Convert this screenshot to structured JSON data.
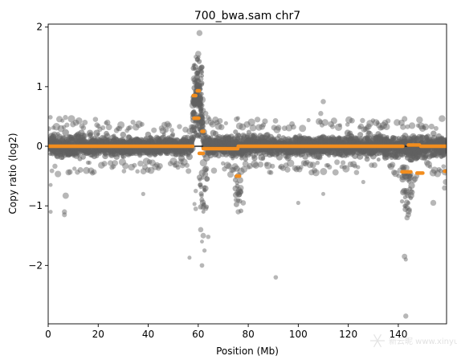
{
  "chart_data": {
    "type": "scatter",
    "title": "700_bwa.sam chr7",
    "xlabel": "Position (Mb)",
    "ylabel": "Copy ratio (log2)",
    "xlim": [
      0,
      159.3
    ],
    "ylim": [
      -2.98,
      2.05
    ],
    "xticks": [
      0,
      20,
      40,
      60,
      80,
      100,
      120,
      140
    ],
    "yticks": [
      2,
      1,
      0,
      -1,
      -2
    ],
    "ytick_labels": [
      "2",
      "1",
      "0",
      "−1",
      "−2"
    ],
    "grid": false,
    "series": [
      {
        "kind": "bins",
        "color": "#606060",
        "profile": [
          [
            0.5,
            0.0,
            0.3
          ],
          [
            10,
            0.0,
            0.28
          ],
          [
            30,
            0.0,
            0.26
          ],
          [
            50,
            0.0,
            0.24
          ],
          [
            57.6,
            0.0,
            0.25
          ],
          [
            58.2,
            0.65,
            0.28
          ],
          [
            59.5,
            0.9,
            0.3
          ],
          [
            60.0,
            0.9,
            0.35
          ],
          [
            61.2,
            0.55,
            0.3
          ],
          [
            62.4,
            0.02,
            0.28
          ],
          [
            70,
            0.0,
            0.26
          ],
          [
            75,
            0.0,
            0.3
          ],
          [
            90,
            0.0,
            0.26
          ],
          [
            110,
            0.0,
            0.27
          ],
          [
            130,
            0.0,
            0.26
          ],
          [
            141,
            0.0,
            0.3
          ],
          [
            145,
            -0.05,
            0.33
          ],
          [
            150,
            0.0,
            0.27
          ],
          [
            159,
            0.0,
            0.29
          ]
        ],
        "outliers": [
          [
            1,
            -1.1
          ],
          [
            1,
            -0.65
          ],
          [
            6.5,
            -1.1
          ],
          [
            6.5,
            -1.15
          ],
          [
            7,
            -0.83
          ],
          [
            38,
            -0.8
          ],
          [
            58.5,
            -0.97
          ],
          [
            59,
            -1.05
          ],
          [
            59,
            -0.75
          ],
          [
            56.5,
            -1.87
          ],
          [
            61,
            -1.4
          ],
          [
            61.5,
            -1.6
          ],
          [
            62,
            -1.5
          ],
          [
            62.5,
            -1.75
          ],
          [
            61.5,
            -2.0
          ],
          [
            64,
            -1.52
          ],
          [
            63.5,
            -0.55
          ],
          [
            62,
            0.6
          ],
          [
            63,
            0.55
          ],
          [
            75,
            -0.9
          ],
          [
            76,
            -1.1
          ],
          [
            77,
            -0.7
          ],
          [
            78,
            -0.95
          ],
          [
            91,
            -2.2
          ],
          [
            100,
            -0.95
          ],
          [
            110,
            -0.8
          ],
          [
            109,
            0.55
          ],
          [
            110,
            0.75
          ],
          [
            142.5,
            -1.85
          ],
          [
            143,
            -1.9
          ],
          [
            142.5,
            -1.0
          ],
          [
            143.5,
            -1.2
          ],
          [
            144,
            -1.15
          ],
          [
            143,
            -2.85
          ],
          [
            126,
            -0.6
          ],
          [
            154,
            -0.95
          ],
          [
            158.5,
            -0.7
          ],
          [
            159,
            -0.6
          ],
          [
            60.5,
            1.9
          ],
          [
            59,
            1.5
          ],
          [
            60,
            1.55
          ]
        ]
      },
      {
        "kind": "segments",
        "color": "#111111",
        "segments": [
          [
            0,
            57.7,
            0.0
          ],
          [
            57.7,
            62.0,
            0.0
          ],
          [
            62.0,
            75.5,
            -0.02
          ],
          [
            75.5,
            141.5,
            0.0
          ],
          [
            141.5,
            159.3,
            0.0
          ]
        ]
      },
      {
        "kind": "gene_trend",
        "color": "#f28d1e",
        "segments": [
          [
            0,
            57.8,
            0.0
          ],
          [
            58.0,
            59.0,
            0.85
          ],
          [
            58.3,
            60.2,
            0.47
          ],
          [
            59.6,
            60.4,
            0.93
          ],
          [
            60.4,
            62.0,
            -0.12
          ],
          [
            61.5,
            62.2,
            0.25
          ],
          [
            62.0,
            75.8,
            -0.04
          ],
          [
            75.3,
            76.5,
            -0.5
          ],
          [
            76.0,
            141.8,
            0.0
          ],
          [
            141.5,
            145.0,
            -0.43
          ],
          [
            144.0,
            148.5,
            0.02
          ],
          [
            147.5,
            149.8,
            -0.45
          ],
          [
            149.0,
            159.3,
            0.0
          ],
          [
            158.5,
            159.3,
            -0.42
          ]
        ]
      }
    ]
  },
  "watermark": {
    "icon": "snowflake-logo-icon",
    "text": "新云昵 www.xinyun.cn"
  }
}
